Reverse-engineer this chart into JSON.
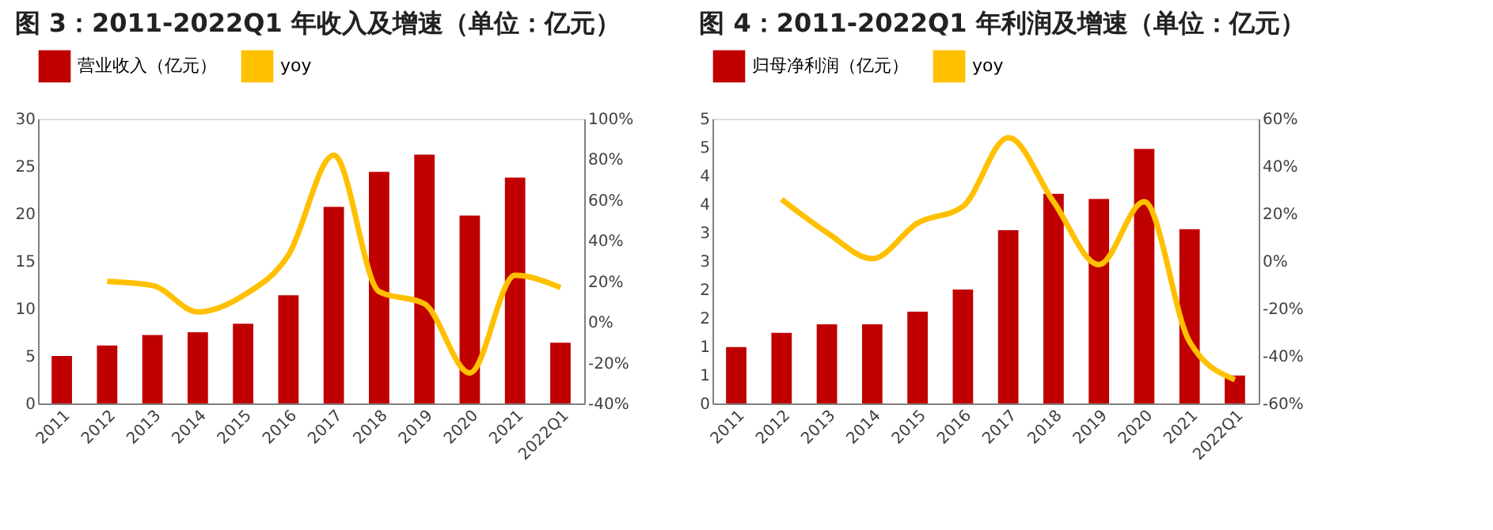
{
  "chart_data": [
    {
      "type": "bar",
      "title": "图 3：2011-2022Q1 年收入及增速（单位：亿元）",
      "categories": [
        "2011",
        "2012",
        "2013",
        "2014",
        "2015",
        "2016",
        "2017",
        "2018",
        "2019",
        "2020",
        "2021",
        "2022Q1"
      ],
      "series": [
        {
          "name": "营业收入（亿元）",
          "color": "#c00000",
          "values": [
            5.0,
            6.1,
            7.2,
            7.5,
            8.4,
            11.4,
            20.7,
            24.4,
            26.2,
            19.8,
            23.8,
            6.4
          ]
        },
        {
          "name": "yoy",
          "type": "line",
          "axis": "y2",
          "color": "#ffc000",
          "values": [
            null,
            20,
            18,
            5,
            13,
            33,
            82,
            15,
            9,
            -25,
            23,
            17
          ]
        }
      ],
      "ylim": [
        0,
        30
      ],
      "yticks": [
        0,
        5,
        10,
        15,
        20,
        25,
        30
      ],
      "y2lim": [
        -40,
        100
      ],
      "y2ticks": [
        {
          "value": -40,
          "label": "-40%"
        },
        {
          "value": -20,
          "label": "-20%"
        },
        {
          "value": 0,
          "label": "0%"
        },
        {
          "value": 20,
          "label": "20%"
        },
        {
          "value": 40,
          "label": "40%"
        },
        {
          "value": 60,
          "label": "60%"
        },
        {
          "value": 80,
          "label": "80%"
        },
        {
          "value": 100,
          "label": "100%"
        }
      ],
      "grid": false,
      "legend": "top",
      "marker": "none"
    },
    {
      "type": "bar",
      "title": "图 4：2011-2022Q1 年利润及增速（单位：亿元）",
      "categories": [
        "2011",
        "2012",
        "2013",
        "2014",
        "2015",
        "2016",
        "2017",
        "2018",
        "2019",
        "2020",
        "2021",
        "2022Q1"
      ],
      "series": [
        {
          "name": "归母净利润（亿元）",
          "color": "#c00000",
          "values": [
            0.99,
            1.24,
            1.39,
            1.39,
            1.61,
            2.0,
            3.04,
            3.68,
            3.59,
            4.47,
            3.06,
            0.49
          ]
        },
        {
          "name": "yoy",
          "type": "line",
          "axis": "y2",
          "color": "#ffc000",
          "values": [
            null,
            26,
            12,
            1,
            16,
            23,
            52,
            25,
            -1.5,
            25,
            -34,
            -50
          ]
        }
      ],
      "ylim": [
        0,
        5
      ],
      "yticks": [
        0,
        {
          "value": 0.5,
          "label": "1"
        },
        1,
        {
          "value": 1.5,
          "label": "2"
        },
        2,
        {
          "value": 2.5,
          "label": "3"
        },
        3,
        {
          "value": 3.5,
          "label": "4"
        },
        4,
        {
          "value": 4.5,
          "label": "5"
        },
        5
      ],
      "y2lim": [
        -60,
        60
      ],
      "y2ticks": [
        {
          "value": -60,
          "label": "-60%"
        },
        {
          "value": -40,
          "label": "-40%"
        },
        {
          "value": -20,
          "label": "-20%"
        },
        {
          "value": 0,
          "label": "0%"
        },
        {
          "value": 20,
          "label": "20%"
        },
        {
          "value": 40,
          "label": "40%"
        },
        {
          "value": 60,
          "label": "60%"
        }
      ],
      "grid": false,
      "legend": "top",
      "marker": "none"
    }
  ]
}
